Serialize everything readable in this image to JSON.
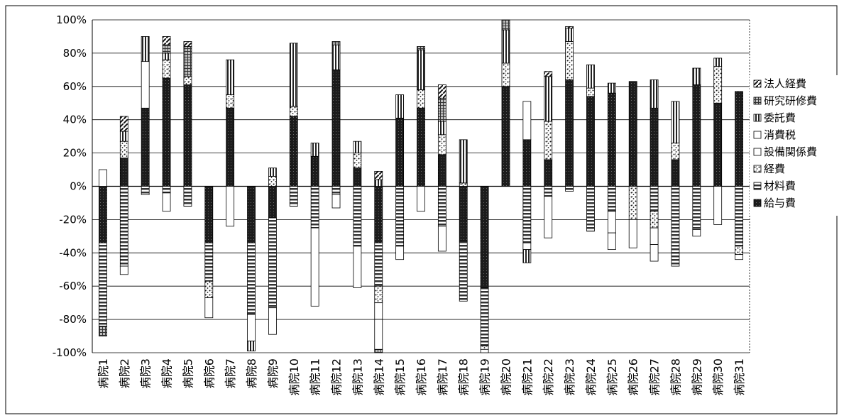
{
  "chart_data": {
    "type": "bar",
    "stacked": true,
    "title": "",
    "xlabel": "",
    "ylabel": "",
    "ylim": [
      -100,
      100
    ],
    "y_ticks": [
      "100%",
      "80%",
      "60%",
      "40%",
      "20%",
      "0%",
      "-20%",
      "-40%",
      "-60%",
      "-80%",
      "-100%"
    ],
    "grid": true,
    "legend_position": "right",
    "categories": [
      "病院1",
      "病院2",
      "病院3",
      "病院4",
      "病院5",
      "病院6",
      "病院7",
      "病院8",
      "病院9",
      "病院10",
      "病院11",
      "病院12",
      "病院13",
      "病院14",
      "病院15",
      "病院16",
      "病院17",
      "病院18",
      "病院19",
      "病院20",
      "病院21",
      "病院22",
      "病院23",
      "病院24",
      "病院25",
      "病院26",
      "病院27",
      "病院28",
      "病院29",
      "病院30",
      "病院31"
    ],
    "series": [
      {
        "name": "給与費",
        "pattern": "dark",
        "color": "#1a1a1a",
        "values": [
          -34,
          17,
          47,
          65,
          61,
          -34,
          47,
          -34,
          -19,
          42,
          18,
          70,
          11,
          -34,
          41,
          47,
          19,
          -33,
          -61,
          60,
          28,
          16,
          64,
          54,
          56,
          63,
          47,
          16,
          61,
          50,
          57
        ]
      },
      {
        "name": "材料費",
        "pattern": "hstripe",
        "color": "#555555",
        "values": [
          -50,
          -48,
          -5,
          -4,
          -12,
          -23,
          0,
          -43,
          -54,
          -12,
          -25,
          -5,
          -36,
          -26,
          -36,
          0,
          -24,
          -36,
          -35,
          0,
          -34,
          -6,
          -3,
          -27,
          -15,
          0,
          -15,
          -48,
          -26,
          0,
          -36
        ]
      },
      {
        "name": "経費",
        "pattern": "speck",
        "color": "#888888",
        "values": [
          0,
          10,
          0,
          11,
          5,
          -10,
          8,
          0,
          6,
          6,
          0,
          0,
          9,
          -10,
          0,
          11,
          12,
          2,
          -2,
          14,
          0,
          23,
          23,
          5,
          0,
          -20,
          -10,
          10,
          0,
          22,
          -5
        ]
      },
      {
        "name": "設備関係費",
        "pattern": "white",
        "color": "#ffffff",
        "values": [
          0,
          -5,
          0,
          -11,
          0,
          -12,
          -24,
          -16,
          -16,
          0,
          -47,
          -8,
          -25,
          -10,
          -8,
          -15,
          -15,
          0,
          -2,
          0,
          -4,
          -25,
          0,
          0,
          -13,
          -17,
          -10,
          0,
          -4,
          -23,
          -3
        ]
      },
      {
        "name": "消費税",
        "pattern": "white",
        "color": "#ffffff",
        "values": [
          10,
          0,
          28,
          0,
          0,
          0,
          0,
          0,
          0,
          0,
          0,
          0,
          0,
          -18,
          0,
          0,
          0,
          0,
          0,
          0,
          23,
          0,
          0,
          0,
          -10,
          0,
          -10,
          0,
          0,
          0,
          0
        ]
      },
      {
        "name": "委託費",
        "pattern": "vstripe",
        "color": "#444444",
        "values": [
          0,
          6,
          15,
          4,
          0,
          0,
          21,
          -6,
          5,
          38,
          8,
          15,
          7,
          4,
          14,
          24,
          8,
          26,
          0,
          20,
          -8,
          27,
          8,
          14,
          6,
          0,
          17,
          25,
          10,
          5,
          0
        ]
      },
      {
        "name": "研究研修費",
        "pattern": "grid",
        "color": "#777777",
        "values": [
          -6,
          0,
          0,
          5,
          18,
          0,
          0,
          0,
          0,
          0,
          0,
          2,
          0,
          -2,
          0,
          2,
          14,
          0,
          0,
          6,
          0,
          0,
          0,
          0,
          0,
          0,
          0,
          0,
          0,
          0,
          0
        ]
      },
      {
        "name": "法人経費",
        "pattern": "diag",
        "color": "#333333",
        "values": [
          0,
          9,
          0,
          5,
          3,
          0,
          0,
          0,
          0,
          0,
          0,
          0,
          0,
          5,
          0,
          0,
          8,
          0,
          0,
          0,
          0,
          3,
          1,
          0,
          0,
          0,
          0,
          0,
          0,
          0,
          0
        ]
      }
    ],
    "legend": [
      "法人経費",
      "研究研修費",
      "委託費",
      "消費税",
      "設備関係費",
      "経費",
      "材料費",
      "給与費"
    ]
  }
}
